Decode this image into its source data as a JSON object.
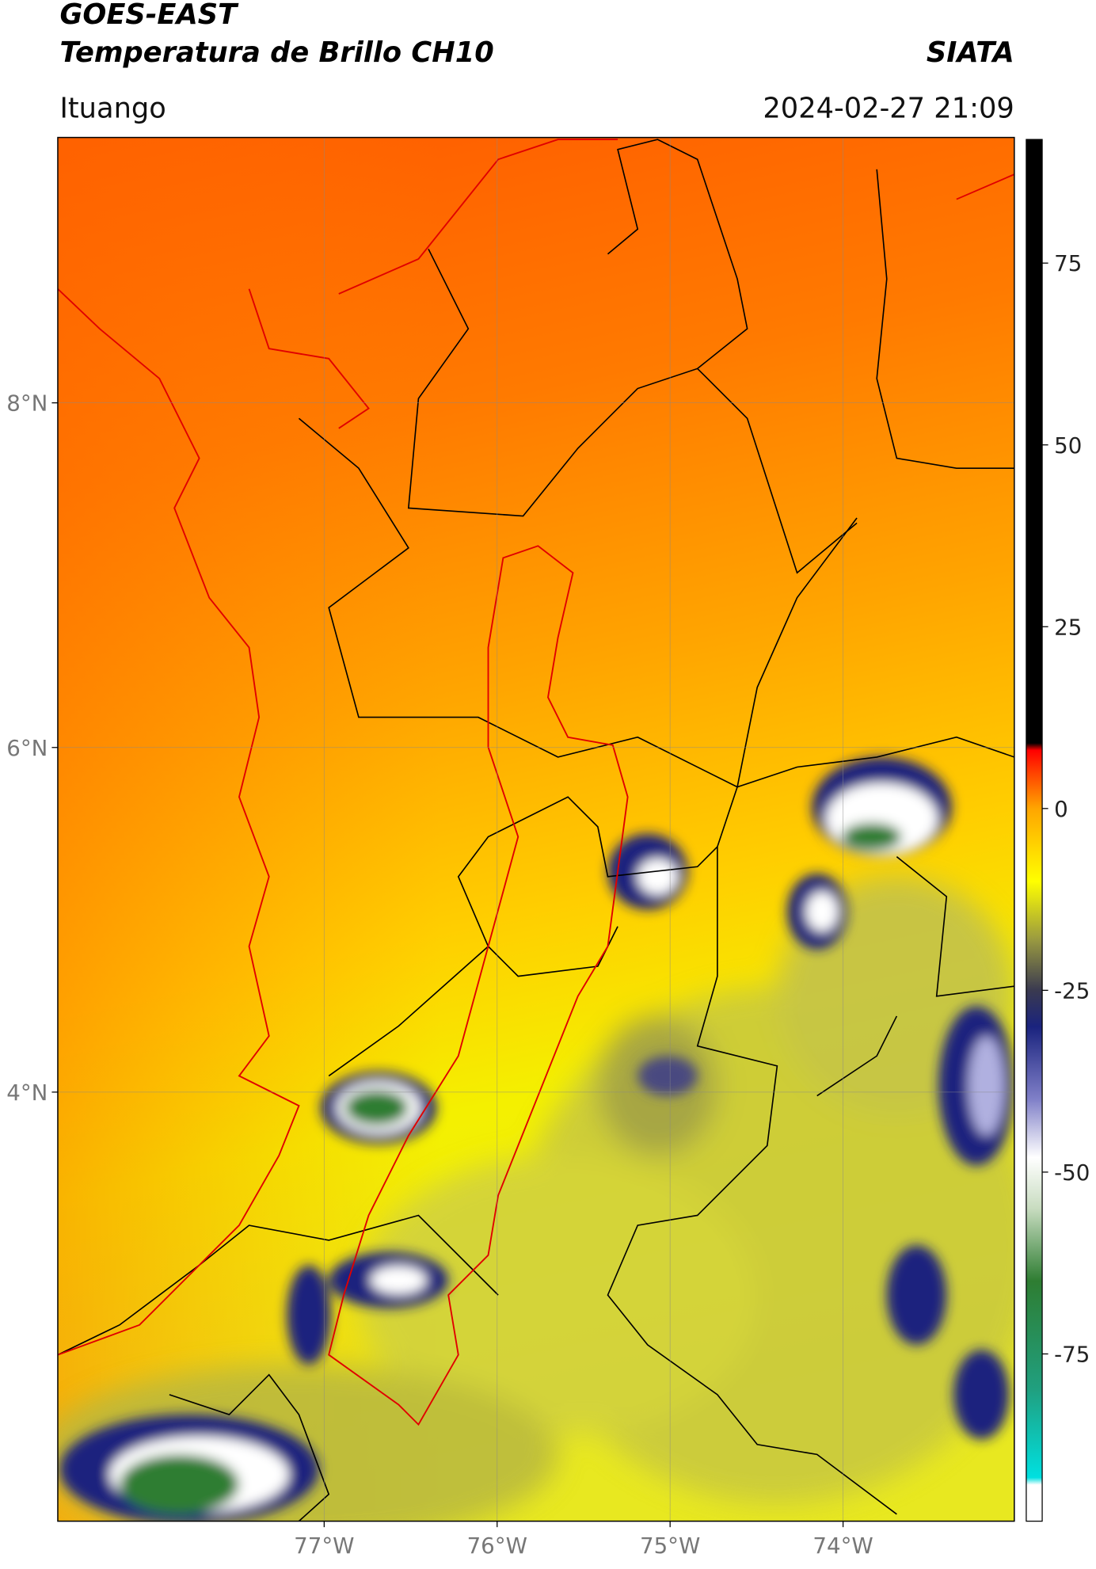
{
  "header": {
    "title": "GOES-EAST",
    "subtitle": "Temperatura de Brillo CH10",
    "org": "SIATA",
    "location": "Ituango",
    "datetime": "2024-02-27 21:09"
  },
  "map": {
    "xlim": [
      -78.54,
      -73.01
    ],
    "ylim": [
      1.51,
      9.54
    ],
    "xticks": [
      {
        "value": -77,
        "label": "77°W"
      },
      {
        "value": -76,
        "label": "76°W"
      },
      {
        "value": -75,
        "label": "75°W"
      },
      {
        "value": -74,
        "label": "74°W"
      }
    ],
    "yticks": [
      {
        "value": 8,
        "label": "8°N"
      },
      {
        "value": 6,
        "label": "6°N"
      },
      {
        "value": 4,
        "label": "4°N"
      }
    ],
    "grid": true
  },
  "colorbar": {
    "lim": [
      -98,
      92
    ],
    "ticks": [
      75,
      50,
      25,
      0,
      -25,
      -50,
      -75
    ],
    "colors": [
      {
        "value": -98,
        "color": "#ffffff"
      },
      {
        "value": -93,
        "color": "#ffffff"
      },
      {
        "value": -92,
        "color": "#00e0e0"
      },
      {
        "value": -80,
        "color": "#20a080"
      },
      {
        "value": -65,
        "color": "#2e7d32"
      },
      {
        "value": -55,
        "color": "#c8dcc0"
      },
      {
        "value": -48,
        "color": "#ffffff"
      },
      {
        "value": -40,
        "color": "#8080c8"
      },
      {
        "value": -30,
        "color": "#1a237e"
      },
      {
        "value": -25,
        "color": "#3a3a50"
      },
      {
        "value": -18,
        "color": "#9a9a40"
      },
      {
        "value": -10,
        "color": "#ffff00"
      },
      {
        "value": 0,
        "color": "#ffa500"
      },
      {
        "value": 5,
        "color": "#ff4000"
      },
      {
        "value": 8,
        "color": "#ff0000"
      },
      {
        "value": 9,
        "color": "#000000"
      },
      {
        "value": 92,
        "color": "#000000"
      }
    ]
  }
}
